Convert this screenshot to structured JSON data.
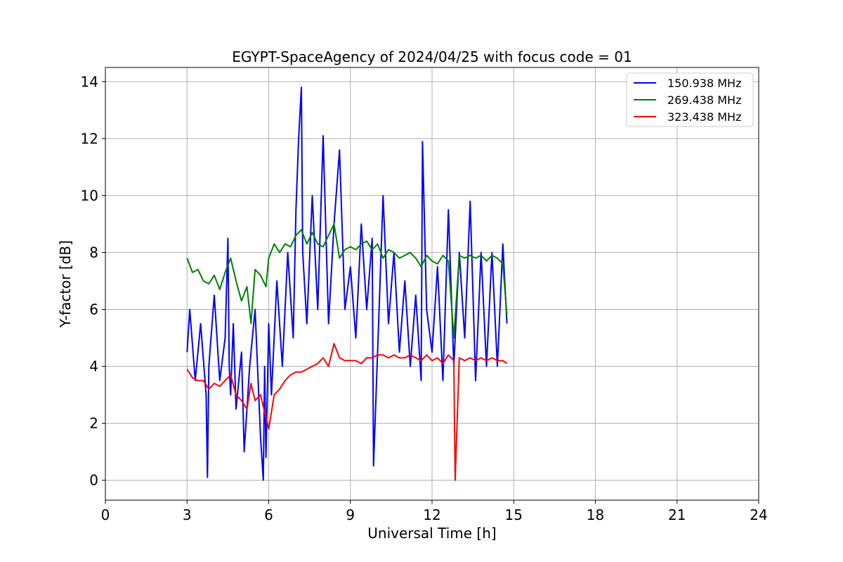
{
  "chart_data": {
    "type": "line",
    "title": "EGYPT-SpaceAgency of 2024/04/25 with focus code = 01",
    "xlabel": "Universal Time [h]",
    "ylabel": "Y-factor [dB]",
    "xlim": [
      0,
      24
    ],
    "ylim": [
      -0.7,
      14.5
    ],
    "xticks": [
      0,
      3,
      6,
      9,
      12,
      15,
      18,
      21,
      24
    ],
    "yticks": [
      0,
      2,
      4,
      6,
      8,
      10,
      12,
      14
    ],
    "grid": true,
    "legend_position": "top-right",
    "series": [
      {
        "name": "150.938 MHz",
        "color": "#0000ff",
        "x": [
          3.0,
          3.1,
          3.3,
          3.5,
          3.7,
          3.75,
          3.8,
          4.0,
          4.2,
          4.4,
          4.5,
          4.55,
          4.6,
          4.7,
          4.8,
          5.0,
          5.1,
          5.3,
          5.5,
          5.7,
          5.8,
          5.85,
          5.9,
          6.0,
          6.1,
          6.3,
          6.5,
          6.7,
          6.9,
          7.0,
          7.1,
          7.2,
          7.25,
          7.4,
          7.6,
          7.8,
          8.0,
          8.2,
          8.4,
          8.6,
          8.8,
          9.0,
          9.2,
          9.4,
          9.6,
          9.8,
          9.85,
          10.0,
          10.2,
          10.4,
          10.6,
          10.8,
          11.0,
          11.2,
          11.4,
          11.6,
          11.65,
          11.8,
          12.0,
          12.2,
          12.4,
          12.6,
          12.8,
          13.0,
          13.2,
          13.4,
          13.6,
          13.8,
          14.0,
          14.2,
          14.4,
          14.6,
          14.75
        ],
        "values": [
          4.5,
          6.0,
          3.5,
          5.5,
          3.0,
          0.1,
          4.0,
          6.5,
          3.5,
          5.0,
          8.5,
          4.0,
          3.0,
          5.5,
          2.5,
          4.5,
          1.0,
          4.0,
          6.0,
          1.5,
          0.0,
          4.0,
          0.8,
          5.5,
          3.0,
          7.0,
          4.0,
          8.0,
          5.0,
          9.5,
          12.0,
          13.8,
          8.0,
          5.5,
          10.0,
          6.0,
          12.1,
          5.5,
          9.0,
          11.6,
          6.0,
          7.5,
          5.0,
          9.0,
          6.0,
          8.5,
          0.5,
          4.5,
          10.0,
          5.5,
          8.0,
          4.5,
          7.0,
          4.0,
          6.5,
          3.5,
          11.9,
          6.0,
          4.5,
          7.5,
          3.5,
          9.5,
          4.0,
          8.0,
          5.0,
          9.8,
          3.5,
          8.0,
          4.0,
          8.0,
          4.0,
          8.3,
          5.5
        ]
      },
      {
        "name": "269.438 MHz",
        "color": "#008000",
        "x": [
          3.0,
          3.2,
          3.4,
          3.6,
          3.8,
          4.0,
          4.2,
          4.4,
          4.6,
          4.8,
          5.0,
          5.2,
          5.35,
          5.5,
          5.7,
          5.9,
          6.0,
          6.2,
          6.4,
          6.6,
          6.8,
          7.0,
          7.2,
          7.4,
          7.6,
          7.8,
          8.0,
          8.2,
          8.4,
          8.6,
          8.8,
          9.0,
          9.2,
          9.4,
          9.6,
          9.8,
          10.0,
          10.2,
          10.4,
          10.6,
          10.8,
          11.0,
          11.2,
          11.4,
          11.6,
          11.8,
          12.0,
          12.2,
          12.4,
          12.6,
          12.8,
          13.0,
          13.2,
          13.4,
          13.6,
          13.8,
          14.0,
          14.2,
          14.4,
          14.6,
          14.75
        ],
        "values": [
          7.8,
          7.3,
          7.4,
          7.0,
          6.9,
          7.2,
          6.7,
          7.3,
          7.8,
          7.0,
          6.3,
          6.8,
          5.5,
          7.4,
          7.2,
          6.8,
          7.8,
          8.3,
          8.0,
          8.3,
          8.2,
          8.6,
          8.8,
          8.3,
          8.7,
          8.3,
          8.2,
          8.6,
          9.0,
          7.8,
          8.1,
          8.2,
          8.1,
          8.3,
          8.4,
          8.1,
          8.3,
          7.8,
          8.1,
          8.0,
          7.8,
          7.9,
          8.0,
          7.8,
          7.5,
          7.9,
          7.7,
          7.6,
          7.9,
          7.7,
          5.0,
          7.9,
          7.8,
          7.9,
          7.8,
          7.9,
          7.7,
          7.9,
          7.8,
          7.6,
          5.8
        ]
      },
      {
        "name": "323.438 MHz",
        "color": "#ff0000",
        "x": [
          3.0,
          3.2,
          3.4,
          3.6,
          3.8,
          4.0,
          4.2,
          4.4,
          4.6,
          4.8,
          5.0,
          5.2,
          5.35,
          5.5,
          5.7,
          5.9,
          6.0,
          6.2,
          6.4,
          6.6,
          6.8,
          7.0,
          7.2,
          7.4,
          7.6,
          7.8,
          8.0,
          8.2,
          8.4,
          8.6,
          8.8,
          9.0,
          9.2,
          9.4,
          9.6,
          9.8,
          10.0,
          10.2,
          10.4,
          10.6,
          10.8,
          11.0,
          11.2,
          11.4,
          11.6,
          11.8,
          12.0,
          12.2,
          12.4,
          12.6,
          12.8,
          12.85,
          13.0,
          13.2,
          13.4,
          13.6,
          13.8,
          14.0,
          14.2,
          14.4,
          14.6,
          14.75
        ],
        "values": [
          3.9,
          3.6,
          3.5,
          3.5,
          3.2,
          3.4,
          3.3,
          3.5,
          3.7,
          3.0,
          2.8,
          2.5,
          3.4,
          2.8,
          3.0,
          2.2,
          1.8,
          3.0,
          3.2,
          3.5,
          3.7,
          3.8,
          3.8,
          3.9,
          4.0,
          4.1,
          4.3,
          4.0,
          4.8,
          4.3,
          4.2,
          4.2,
          4.2,
          4.1,
          4.3,
          4.3,
          4.4,
          4.4,
          4.3,
          4.4,
          4.3,
          4.3,
          4.4,
          4.3,
          4.2,
          4.4,
          4.2,
          4.3,
          4.1,
          4.4,
          4.2,
          0.0,
          4.3,
          4.2,
          4.3,
          4.2,
          4.3,
          4.2,
          4.3,
          4.2,
          4.2,
          4.1
        ]
      }
    ]
  }
}
